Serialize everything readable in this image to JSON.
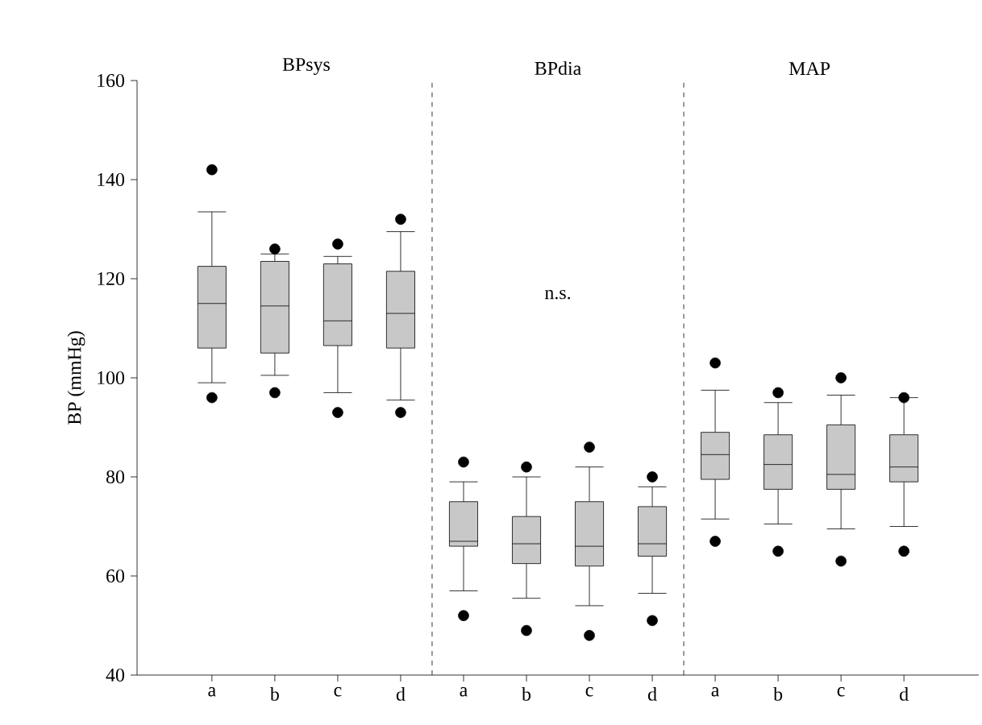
{
  "chart_data": {
    "type": "box",
    "ylabel": "BP (mmHg)",
    "categories": [
      "a",
      "b",
      "c",
      "d",
      "a",
      "b",
      "c",
      "d",
      "a",
      "b",
      "c",
      "d"
    ],
    "annotations": [
      "BPsys",
      "BPdia",
      "MAP",
      "n.s."
    ],
    "ylim": [
      40,
      160
    ],
    "yticks": [
      40,
      60,
      80,
      100,
      120,
      140,
      160
    ],
    "color": "#c8c8c8",
    "boxes": [
      {
        "low": 99,
        "q1": 106,
        "median": 115,
        "q3": 122.5,
        "high": 133.5,
        "outliers": [
          142,
          96
        ]
      },
      {
        "low": 100.5,
        "q1": 105,
        "median": 114.5,
        "q3": 123.5,
        "high": 125,
        "outliers": [
          126,
          97
        ]
      },
      {
        "low": 97,
        "q1": 106.5,
        "median": 111.5,
        "q3": 123,
        "high": 124.5,
        "outliers": [
          127,
          93
        ]
      },
      {
        "low": 95.5,
        "q1": 106,
        "median": 113,
        "q3": 121.5,
        "high": 129.5,
        "outliers": [
          132,
          93
        ]
      },
      {
        "low": 57,
        "q1": 66,
        "median": 67,
        "q3": 75,
        "high": 79,
        "outliers": [
          83,
          52
        ]
      },
      {
        "low": 55.5,
        "q1": 62.5,
        "median": 66.5,
        "q3": 72,
        "high": 80,
        "outliers": [
          82,
          49
        ]
      },
      {
        "low": 54,
        "q1": 62,
        "median": 66,
        "q3": 75,
        "high": 82,
        "outliers": [
          86,
          48
        ]
      },
      {
        "low": 56.5,
        "q1": 64,
        "median": 66.5,
        "q3": 74,
        "high": 78,
        "outliers": [
          80,
          51
        ]
      },
      {
        "low": 71.5,
        "q1": 79.5,
        "median": 84.5,
        "q3": 89,
        "high": 97.5,
        "outliers": [
          103,
          67
        ]
      },
      {
        "low": 70.5,
        "q1": 77.5,
        "median": 82.5,
        "q3": 88.5,
        "high": 95,
        "outliers": [
          97,
          65
        ]
      },
      {
        "low": 69.5,
        "q1": 77.5,
        "median": 80.5,
        "q3": 90.5,
        "high": 96.5,
        "outliers": [
          100,
          63
        ]
      },
      {
        "low": 70,
        "q1": 79,
        "median": 82,
        "q3": 88.5,
        "high": 96,
        "outliers": [
          96,
          65
        ]
      }
    ]
  }
}
